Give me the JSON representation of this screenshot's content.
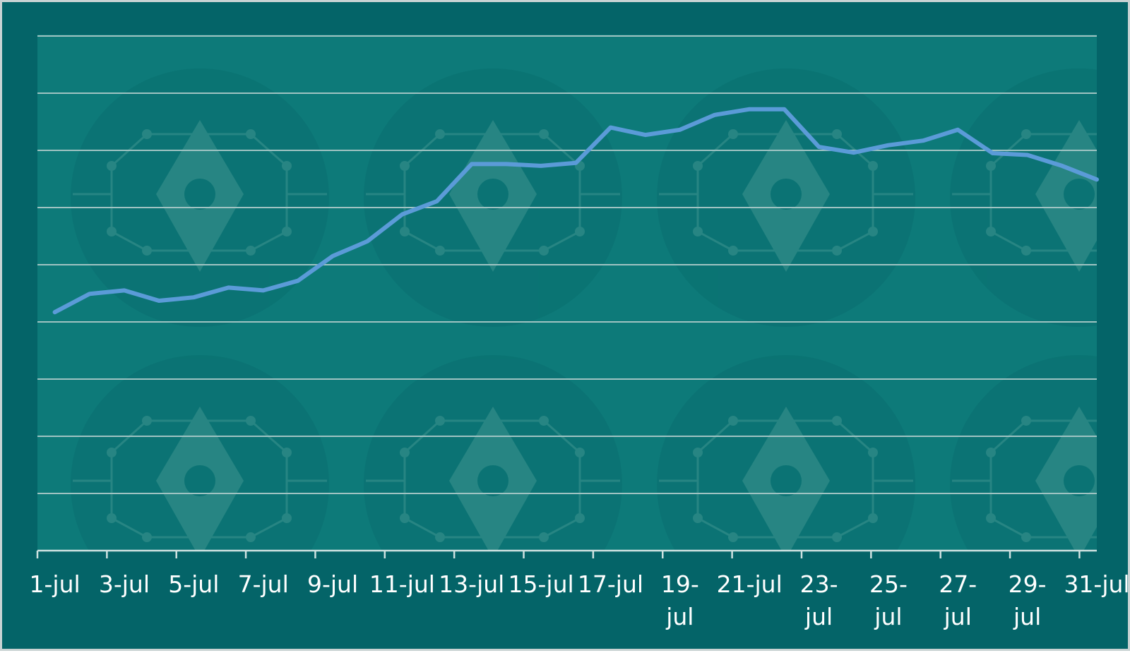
{
  "colors": {
    "background": "#046468",
    "plot_background": "#0d7a79",
    "gridline": "#9fc3c2",
    "axis": "#cfe2e1",
    "line": "#5b9bd8",
    "text": "#ffffff"
  },
  "chart_data": {
    "type": "line",
    "title": "",
    "xlabel": "",
    "ylabel": "",
    "grid": true,
    "legend": "none",
    "y_tick_labels_shown": false,
    "x_tick_labels": [
      [
        "1-jul"
      ],
      [
        "3-jul"
      ],
      [
        "5-jul"
      ],
      [
        "7-jul"
      ],
      [
        "9-jul"
      ],
      [
        "11-jul"
      ],
      [
        "13-jul"
      ],
      [
        "15-jul"
      ],
      [
        "17-jul"
      ],
      [
        "19-",
        "jul"
      ],
      [
        "21-jul"
      ],
      [
        "23-",
        "jul"
      ],
      [
        "25-",
        "jul"
      ],
      [
        "27-",
        "jul"
      ],
      [
        "29-",
        "jul"
      ],
      [
        "31-jul"
      ]
    ],
    "x": [
      "1-jul",
      "2-jul",
      "3-jul",
      "4-jul",
      "5-jul",
      "6-jul",
      "7-jul",
      "8-jul",
      "9-jul",
      "10-jul",
      "11-jul",
      "12-jul",
      "13-jul",
      "14-jul",
      "15-jul",
      "16-jul",
      "17-jul",
      "18-jul",
      "19-jul",
      "20-jul",
      "21-jul",
      "22-jul",
      "23-jul",
      "24-jul",
      "25-jul",
      "26-jul",
      "27-jul",
      "28-jul",
      "29-jul",
      "30-jul",
      "31-jul"
    ],
    "ylim": [
      0,
      9
    ],
    "gridline_count": 9,
    "series": [
      {
        "values": [
          4.17,
          4.49,
          4.55,
          4.37,
          4.43,
          4.6,
          4.55,
          4.72,
          5.15,
          5.41,
          5.88,
          6.11,
          6.76,
          6.76,
          6.73,
          6.78,
          7.4,
          7.27,
          7.36,
          7.62,
          7.72,
          7.72,
          7.06,
          6.96,
          7.09,
          7.17,
          7.36,
          6.95,
          6.92,
          6.73,
          6.49
        ]
      }
    ]
  }
}
